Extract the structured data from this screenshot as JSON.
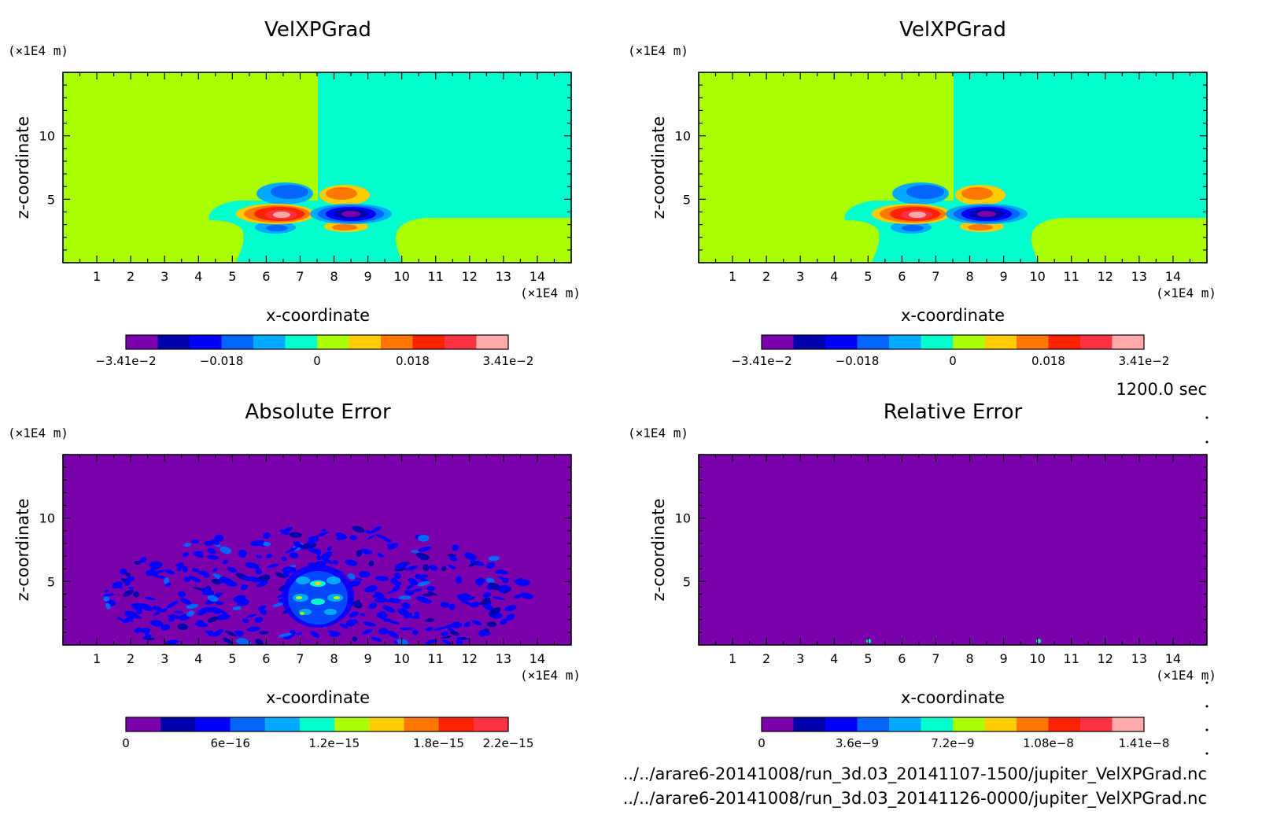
{
  "footer": {
    "time": "1200.0 sec",
    "file1": "../../arare6-20141008/run_3d.03_20141107-1500/jupiter_VelXPGrad.nc",
    "file2": "../../arare6-20141008/run_3d.03_20141126-0000/jupiter_VelXPGrad.nc"
  },
  "colors": {
    "cyan": "#00ffcc",
    "yellowgreen": "#aaff00",
    "purple": "#7b00ab"
  },
  "chart_data": [
    {
      "type": "heatmap",
      "title": "VelXPGrad",
      "xlabel": "x-coordinate",
      "ylabel": "z-coordinate",
      "x_unit": "(×1E4 m)",
      "y_unit": "(×1E4 m)",
      "xlim": [
        0,
        15
      ],
      "ylim": [
        0,
        15
      ],
      "x_ticks": [
        "1",
        "2",
        "3",
        "4",
        "5",
        "6",
        "7",
        "8",
        "9",
        "10",
        "11",
        "12",
        "13",
        "14"
      ],
      "y_ticks": [
        "5",
        "10"
      ],
      "colorbar": {
        "colors": [
          "#7b00ab",
          "#0000aa",
          "#0000ff",
          "#0066ff",
          "#00aaff",
          "#00ffcc",
          "#aaff00",
          "#ffcc00",
          "#ff7700",
          "#ff2200",
          "#ff3344",
          "#ffaaaa"
        ],
        "labels": [
          "−3.41e−2",
          "−0.018",
          "0",
          "0.018",
          "3.41e−2"
        ],
        "label_positions": [
          0,
          0.25,
          0.5,
          0.75,
          1
        ]
      }
    },
    {
      "type": "heatmap",
      "title": "VelXPGrad",
      "xlabel": "x-coordinate",
      "ylabel": "z-coordinate",
      "x_unit": "(×1E4 m)",
      "y_unit": "(×1E4 m)",
      "xlim": [
        0,
        15
      ],
      "ylim": [
        0,
        15
      ],
      "x_ticks": [
        "1",
        "2",
        "3",
        "4",
        "5",
        "6",
        "7",
        "8",
        "9",
        "10",
        "11",
        "12",
        "13",
        "14"
      ],
      "y_ticks": [
        "5",
        "10"
      ],
      "colorbar": {
        "colors": [
          "#7b00ab",
          "#0000aa",
          "#0000ff",
          "#0066ff",
          "#00aaff",
          "#00ffcc",
          "#aaff00",
          "#ffcc00",
          "#ff7700",
          "#ff2200",
          "#ff3344",
          "#ffaaaa"
        ],
        "labels": [
          "−3.41e−2",
          "−0.018",
          "0",
          "0.018",
          "3.41e−2"
        ],
        "label_positions": [
          0,
          0.25,
          0.5,
          0.75,
          1
        ]
      }
    },
    {
      "type": "heatmap",
      "title": "Absolute Error",
      "xlabel": "x-coordinate",
      "ylabel": "z-coordinate",
      "x_unit": "(×1E4 m)",
      "y_unit": "(×1E4 m)",
      "xlim": [
        0,
        15
      ],
      "ylim": [
        0,
        15
      ],
      "x_ticks": [
        "1",
        "2",
        "3",
        "4",
        "5",
        "6",
        "7",
        "8",
        "9",
        "10",
        "11",
        "12",
        "13",
        "14"
      ],
      "y_ticks": [
        "5",
        "10"
      ],
      "colorbar": {
        "colors": [
          "#7b00ab",
          "#0000aa",
          "#0000ff",
          "#0066ff",
          "#00aaff",
          "#00ffcc",
          "#aaff00",
          "#ffcc00",
          "#ff7700",
          "#ff2200",
          "#ff3344"
        ],
        "labels": [
          "0",
          "6e−16",
          "1.2e−15",
          "1.8e−15",
          "2.2e−15"
        ],
        "label_positions": [
          0,
          0.273,
          0.545,
          0.818,
          1
        ]
      }
    },
    {
      "type": "heatmap",
      "title": "Relative Error",
      "xlabel": "x-coordinate",
      "ylabel": "z-coordinate",
      "x_unit": "(×1E4 m)",
      "y_unit": "(×1E4 m)",
      "xlim": [
        0,
        15
      ],
      "ylim": [
        0,
        15
      ],
      "x_ticks": [
        "1",
        "2",
        "3",
        "4",
        "5",
        "6",
        "7",
        "8",
        "9",
        "10",
        "11",
        "12",
        "13",
        "14"
      ],
      "y_ticks": [
        "5",
        "10"
      ],
      "colorbar": {
        "colors": [
          "#7b00ab",
          "#0000aa",
          "#0000ff",
          "#0066ff",
          "#00aaff",
          "#00ffcc",
          "#aaff00",
          "#ffcc00",
          "#ff7700",
          "#ff2200",
          "#ff3344",
          "#ffaaaa"
        ],
        "labels": [
          "0",
          "3.6e−9",
          "7.2e−9",
          "1.08e−8",
          "1.41e−8"
        ],
        "label_positions": [
          0,
          0.25,
          0.5,
          0.75,
          1
        ]
      }
    }
  ]
}
